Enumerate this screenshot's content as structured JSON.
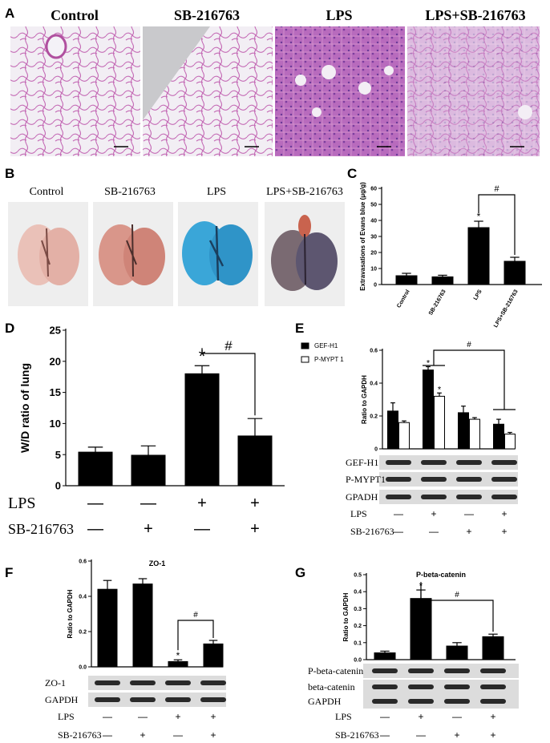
{
  "panel_letters": [
    "A",
    "B",
    "C",
    "D",
    "E",
    "F",
    "G"
  ],
  "panel_a": {
    "titles": [
      "Control",
      "SB-216763",
      "LPS",
      "LPS+SB-216763"
    ]
  },
  "panel_b": {
    "titles": [
      "Control",
      "SB-216763",
      "LPS",
      "LPS+SB-216763"
    ]
  },
  "colors": {
    "bar_fill": "#000000",
    "open_bar_fill": "#ffffff",
    "he_stain": "#d98cc8",
    "evans_blue": "#3aa6d8",
    "lung_tissue": "#e8b2a8"
  },
  "chart_data": [
    {
      "panel": "C",
      "type": "bar",
      "categories": [
        "Control",
        "SB-216763",
        "LPS",
        "LPS+SB-216763"
      ],
      "values": [
        5.5,
        4.8,
        35.5,
        14.5
      ],
      "errors": [
        1.5,
        1.0,
        4.0,
        2.5
      ],
      "ylabel": "Extravasations of Evans blue (μg/g)",
      "ylim": [
        0,
        60
      ],
      "yticks": [
        "0",
        "10",
        "20",
        "30",
        "40",
        "50",
        "60"
      ],
      "annotations": [
        "*",
        "#"
      ]
    },
    {
      "panel": "D",
      "type": "bar",
      "values": [
        5.4,
        4.9,
        18.0,
        8.0
      ],
      "errors": [
        0.8,
        1.5,
        1.3,
        2.8
      ],
      "ylabel": "W/D ratio of lung",
      "ylim": [
        0,
        25
      ],
      "yticks": [
        "0",
        "5",
        "10",
        "15",
        "20",
        "25"
      ],
      "condition_rows": [
        {
          "label": "LPS",
          "signs": [
            "—",
            "—",
            "+",
            "+"
          ]
        },
        {
          "label": "SB-216763",
          "signs": [
            "—",
            "+",
            "—",
            "+"
          ]
        }
      ],
      "annotations": [
        "*",
        "#"
      ]
    },
    {
      "panel": "E",
      "type": "bar",
      "series": [
        {
          "name": "GEF-H1",
          "values": [
            0.23,
            0.48,
            0.22,
            0.15
          ],
          "errors": [
            0.05,
            0.02,
            0.04,
            0.03
          ]
        },
        {
          "name": "P-MYPT 1",
          "values": [
            0.16,
            0.32,
            0.18,
            0.09
          ],
          "errors": [
            0.01,
            0.02,
            0.01,
            0.01
          ]
        }
      ],
      "ylabel": "Ratio to GAPDH",
      "ylim": [
        0,
        0.6
      ],
      "yticks": [
        "0",
        "0.2",
        "0.4",
        "0.6"
      ],
      "blots": [
        "GEF-H1",
        "P-MYPT1",
        "GPADH"
      ],
      "condition_rows": [
        {
          "label": "LPS",
          "signs": [
            "—",
            "+",
            "—",
            "+"
          ]
        },
        {
          "label": "SB-216763",
          "signs": [
            "—",
            "—",
            "+",
            "+"
          ]
        }
      ],
      "annotations": [
        "*",
        "*",
        "#"
      ]
    },
    {
      "panel": "F",
      "type": "bar",
      "title": "ZO-1",
      "values": [
        0.44,
        0.47,
        0.03,
        0.13
      ],
      "errors": [
        0.05,
        0.03,
        0.01,
        0.02
      ],
      "ylabel": "Ratio to GAPDH",
      "ylim": [
        0,
        0.6
      ],
      "yticks": [
        "0.0",
        "0.2",
        "0.4",
        "0.6"
      ],
      "blots": [
        "ZO-1",
        "GAPDH"
      ],
      "condition_rows": [
        {
          "label": "LPS",
          "signs": [
            "—",
            "—",
            "+",
            "+"
          ]
        },
        {
          "label": "SB-216763",
          "signs": [
            "—",
            "+",
            "—",
            "+"
          ]
        }
      ],
      "annotations": [
        "*",
        "#"
      ]
    },
    {
      "panel": "G",
      "type": "bar",
      "title": "P-beta-catenin",
      "values": [
        0.04,
        0.36,
        0.08,
        0.135
      ],
      "errors": [
        0.01,
        0.05,
        0.02,
        0.015
      ],
      "ylabel": "Ratio to GAPDH",
      "ylim": [
        0,
        0.5
      ],
      "yticks": [
        "0.0",
        "0.1",
        "0.2",
        "0.3",
        "0.4",
        "0.5"
      ],
      "blots": [
        "P-beta-catenin",
        "beta-catenin",
        "GAPDH"
      ],
      "condition_rows": [
        {
          "label": "LPS",
          "signs": [
            "—",
            "+",
            "—",
            "+"
          ]
        },
        {
          "label": "SB-216763",
          "signs": [
            "—",
            "—",
            "+",
            "+"
          ]
        }
      ],
      "annotations": [
        "*",
        "#"
      ]
    }
  ]
}
